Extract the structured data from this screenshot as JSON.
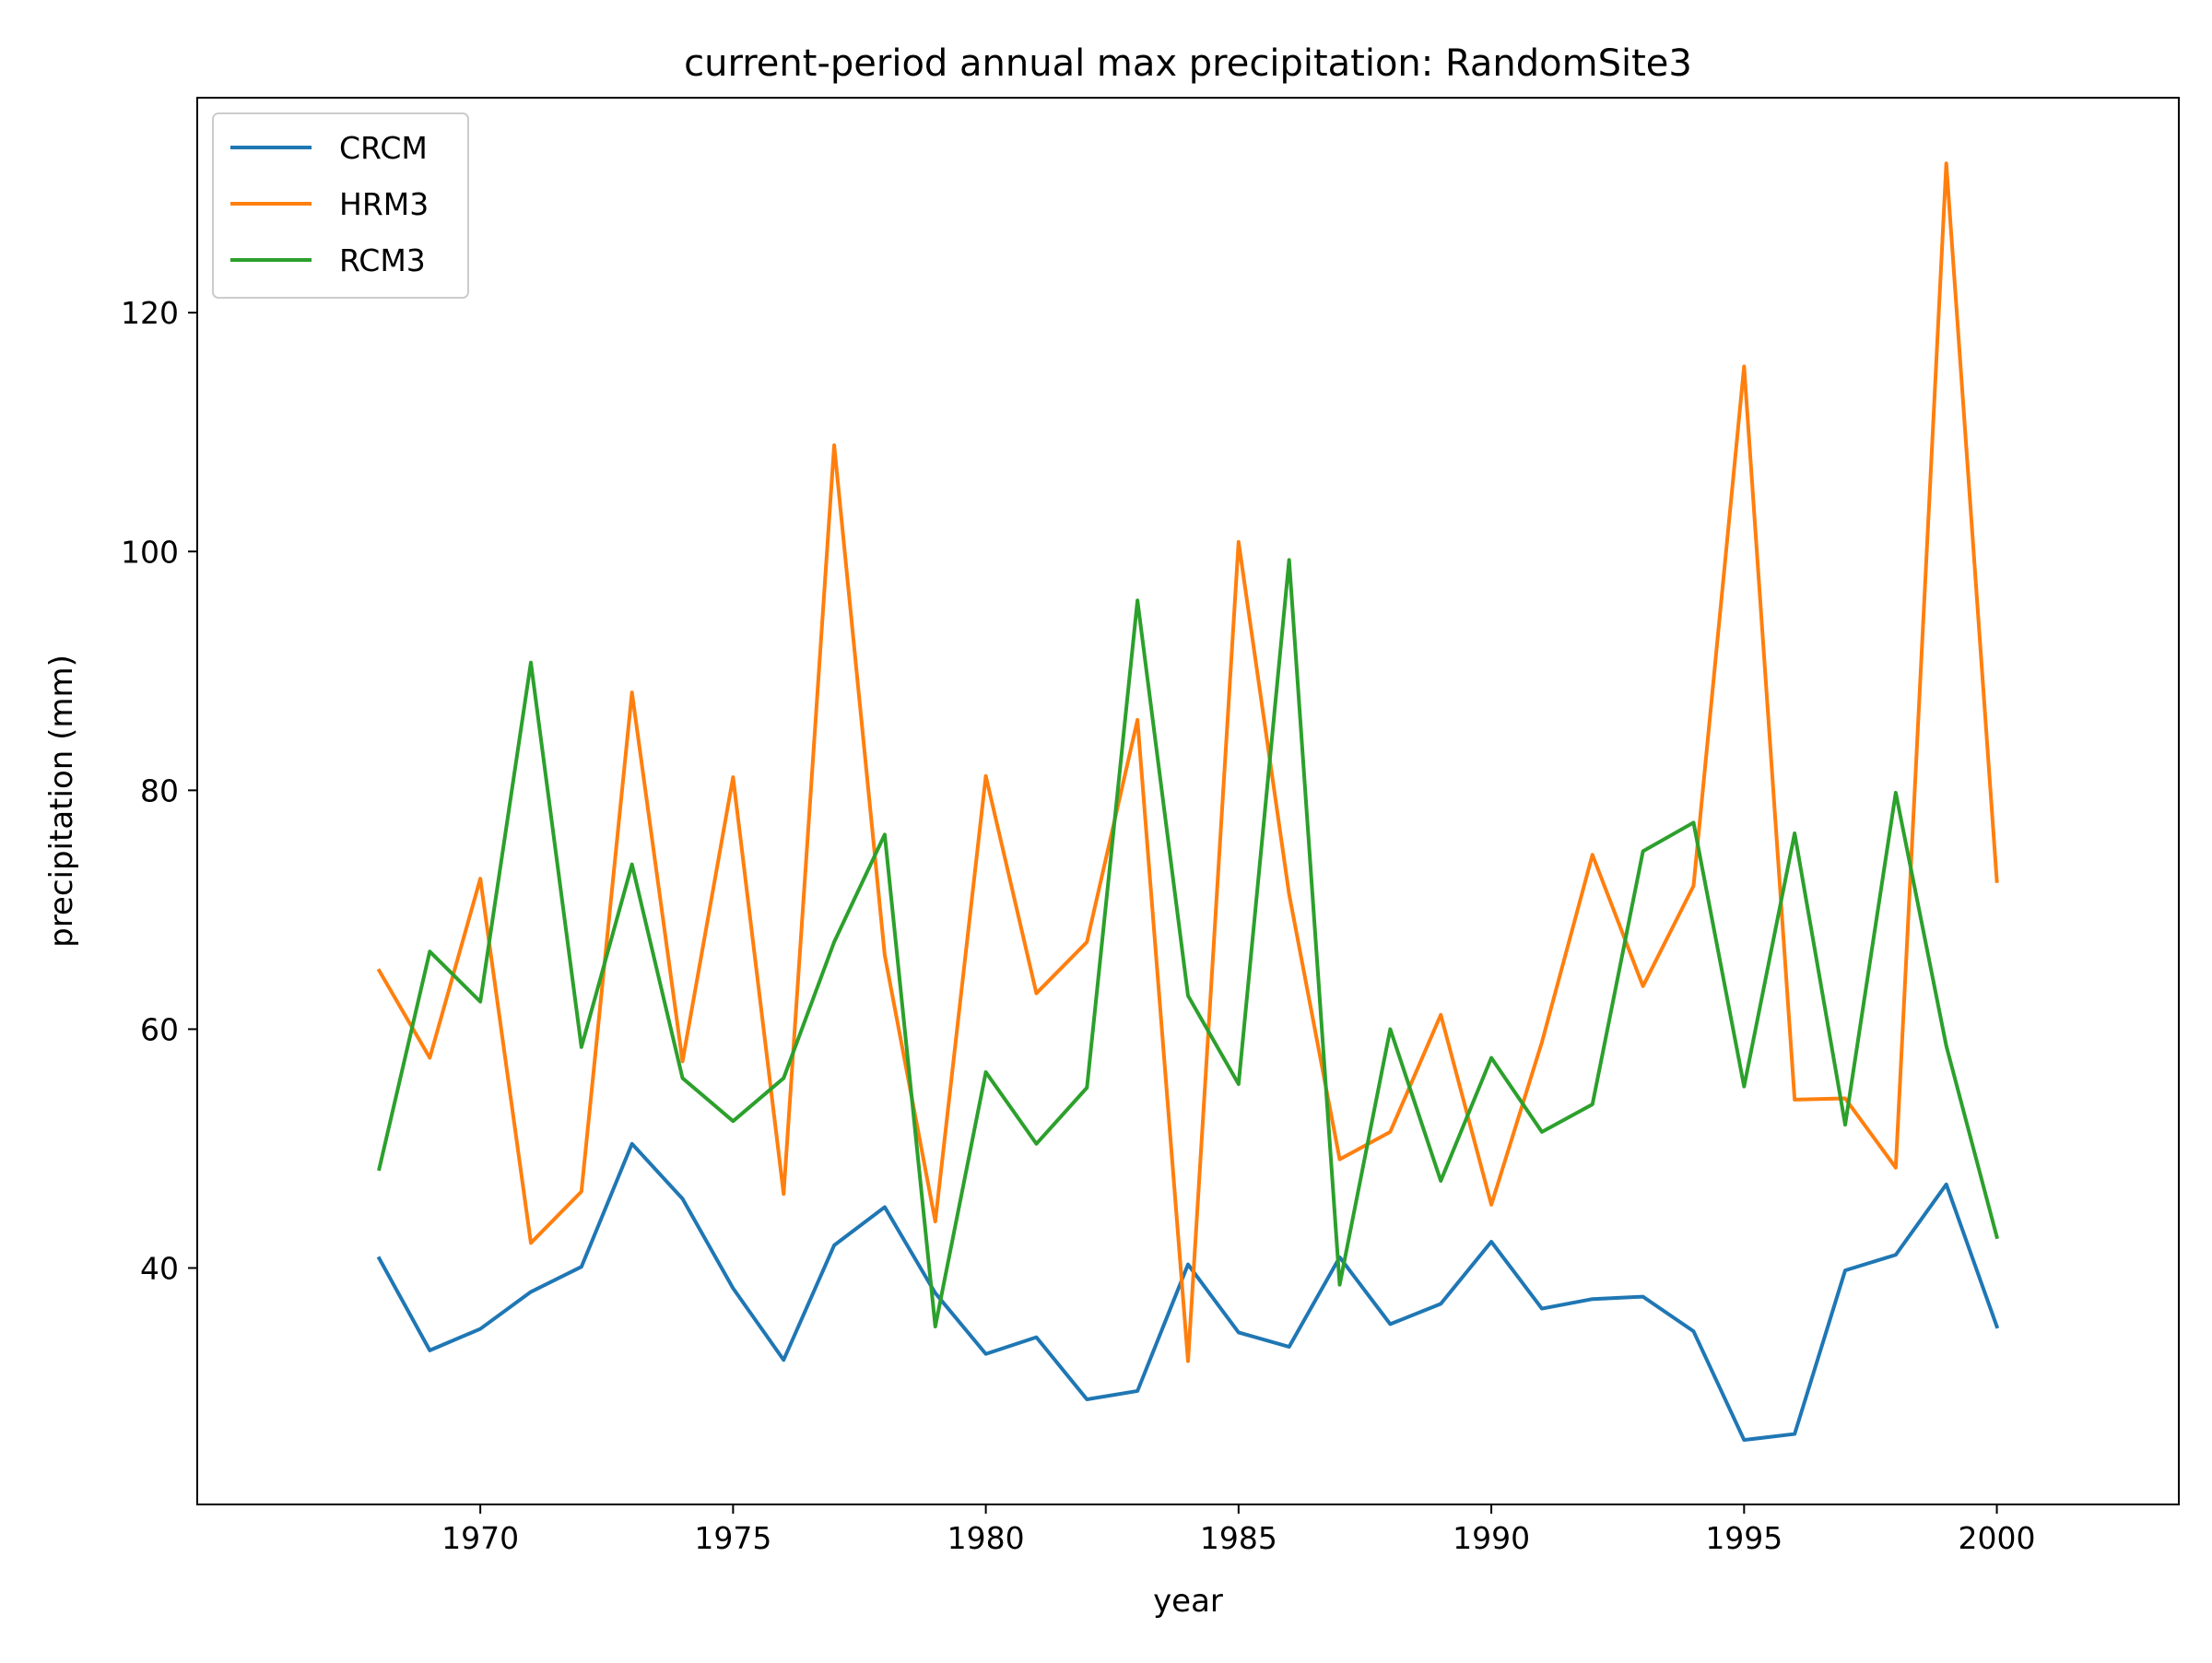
{
  "chart_data": {
    "type": "line",
    "title": "current-period annual max precipitation: RandomSite3",
    "xlabel": "year",
    "ylabel": "precipitation (mm)",
    "x": [
      1968,
      1969,
      1970,
      1971,
      1972,
      1973,
      1974,
      1975,
      1976,
      1977,
      1978,
      1979,
      1980,
      1981,
      1982,
      1983,
      1984,
      1985,
      1986,
      1987,
      1988,
      1989,
      1990,
      1991,
      1992,
      1993,
      1994,
      1995,
      1996,
      1997,
      1998,
      1999,
      2000
    ],
    "xlim": [
      1964.4,
      2003.6
    ],
    "ylim": [
      20.2,
      138.0
    ],
    "xticks": [
      1970,
      1975,
      1980,
      1985,
      1990,
      1995,
      2000
    ],
    "yticks": [
      40,
      60,
      80,
      100,
      120
    ],
    "grid": false,
    "legend_position": "upper-left",
    "series": [
      {
        "name": "CRCM",
        "color": "#1f77b4",
        "values": [
          40.8,
          33.1,
          34.9,
          38.0,
          40.1,
          50.4,
          45.8,
          38.3,
          32.3,
          41.9,
          45.1,
          37.9,
          32.8,
          34.2,
          29.0,
          29.7,
          40.3,
          34.6,
          33.4,
          40.9,
          35.3,
          37.0,
          42.2,
          36.6,
          37.4,
          37.6,
          34.7,
          25.6,
          26.1,
          39.8,
          41.1,
          47.0,
          35.1
        ]
      },
      {
        "name": "HRM3",
        "color": "#ff7f0e",
        "values": [
          64.9,
          57.6,
          72.6,
          42.1,
          46.4,
          88.2,
          57.3,
          81.1,
          46.2,
          108.9,
          66.2,
          43.9,
          81.2,
          63.0,
          67.3,
          85.9,
          32.2,
          100.8,
          71.3,
          49.1,
          51.4,
          61.2,
          45.3,
          58.9,
          74.6,
          63.6,
          72.0,
          115.5,
          54.1,
          54.2,
          48.4,
          132.5,
          72.4
        ]
      },
      {
        "name": "RCM3",
        "color": "#2ca02c",
        "values": [
          48.3,
          66.5,
          62.3,
          90.7,
          58.5,
          73.8,
          55.9,
          52.3,
          55.9,
          67.3,
          76.3,
          35.1,
          56.4,
          50.4,
          55.1,
          95.9,
          62.8,
          55.4,
          99.3,
          38.6,
          60.0,
          47.3,
          57.6,
          51.4,
          53.7,
          74.9,
          77.3,
          55.2,
          76.4,
          52.0,
          79.8,
          58.6,
          42.6
        ]
      }
    ]
  }
}
